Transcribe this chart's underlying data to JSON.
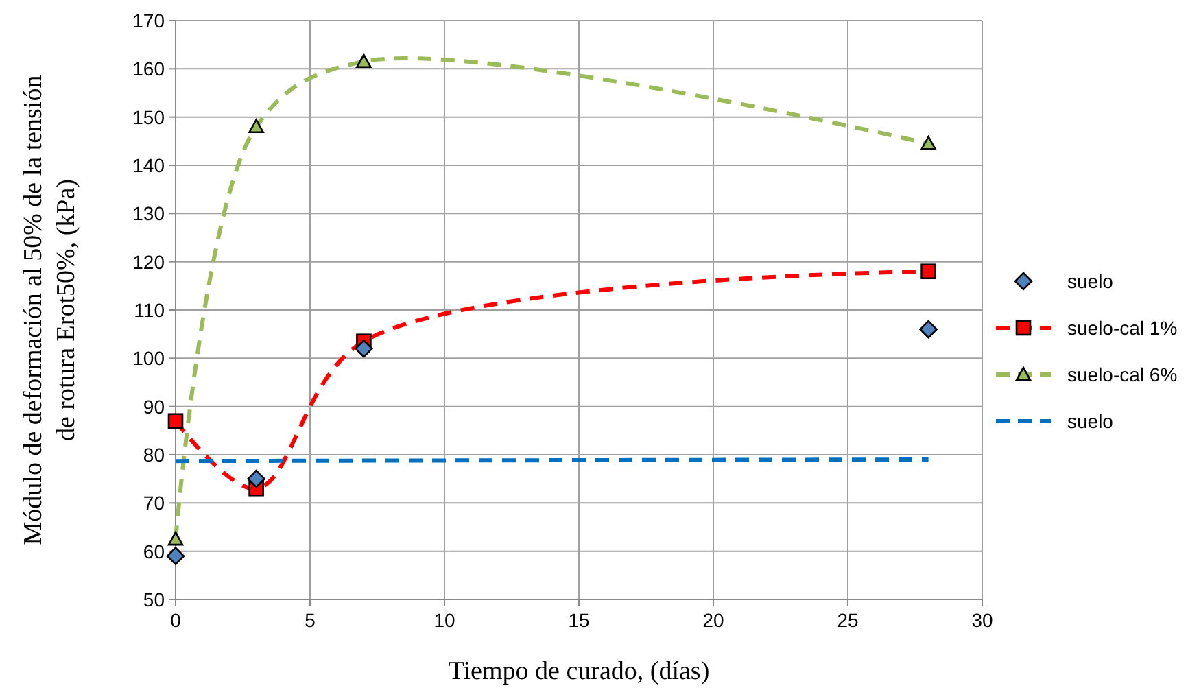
{
  "chart_data": {
    "type": "line",
    "xlabel": "Tiempo de curado, (días)",
    "ylabel": "Módulo de deformación al 50% de la tensión\nde rotura  Erot50%, (kPa)",
    "xlim": [
      0,
      30
    ],
    "xticks": [
      0,
      5,
      10,
      15,
      20,
      25,
      30
    ],
    "ylim": [
      50,
      170
    ],
    "yticks": [
      50,
      60,
      70,
      80,
      90,
      100,
      110,
      120,
      130,
      140,
      150,
      160,
      170
    ],
    "grid": true,
    "legend": "right",
    "series": [
      {
        "name": "suelo",
        "type": "scatter",
        "marker": "diamond",
        "color": "#4f81bd",
        "x": [
          0,
          3,
          7,
          28
        ],
        "values": [
          59,
          75,
          102,
          106
        ]
      },
      {
        "name": "suelo-cal 1%",
        "marker": "square",
        "line_style": "dashed",
        "color": "#ff0000",
        "x": [
          0,
          3,
          7,
          28
        ],
        "values": [
          87,
          73,
          103.5,
          118
        ]
      },
      {
        "name": "suelo-cal 6%",
        "marker": "triangle",
        "line_style": "dashed",
        "color": "#9bbb59",
        "x": [
          0,
          3,
          7,
          28
        ],
        "values": [
          62.5,
          148,
          161.5,
          144.5
        ]
      },
      {
        "name": "suelo",
        "marker": "none",
        "line_style": "dashed",
        "color": "#0070c0",
        "x": [
          0,
          28
        ],
        "values": [
          78.7,
          79
        ]
      }
    ]
  }
}
